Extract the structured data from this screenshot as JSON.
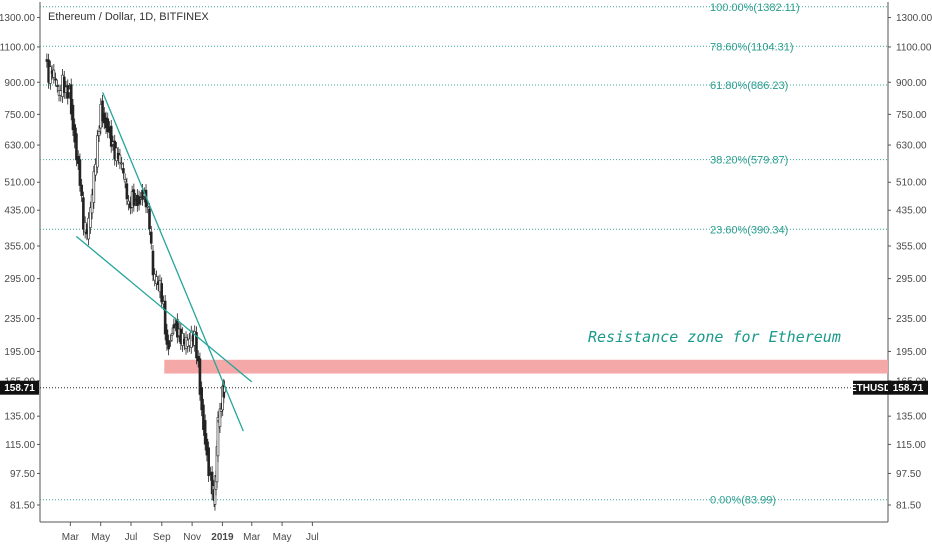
{
  "chart_data": {
    "type": "candlestick",
    "title": "Ethereum / Dollar, 1D, BITFINEX",
    "y_scale": "log",
    "ylim": [
      74,
      1420
    ],
    "y_ticks": [
      "1300.00",
      "1100.00",
      "900.00",
      "750.00",
      "630.00",
      "510.00",
      "435.00",
      "355.00",
      "295.00",
      "235.00",
      "195.00",
      "165.00",
      "135.00",
      "115.00",
      "97.50",
      "81.50"
    ],
    "x_ticks": [
      "Mar",
      "May",
      "Jul",
      "Sep",
      "Nov",
      "2019",
      "Mar",
      "May",
      "Jul"
    ],
    "fibonacci": [
      {
        "label": "100.00%(1382.11)",
        "price": 1382.11
      },
      {
        "label": "78.60%(1104.31)",
        "price": 1104.31
      },
      {
        "label": "61.80%(886.23)",
        "price": 886.23
      },
      {
        "label": "38.20%(579.87)",
        "price": 579.87
      },
      {
        "label": "23.60%(390.34)",
        "price": 390.34
      },
      {
        "label": "0.00%(83.99)",
        "price": 83.99
      }
    ],
    "current_price": {
      "symbol": "ETHUSD",
      "value": "158.71",
      "price": 158.71
    },
    "annotation": "Resistance zone for Ethereum",
    "resistance_zone": {
      "low": 172,
      "high": 186
    },
    "trendlines": [
      {
        "name": "descending resistance",
        "from": {
          "date": "2018-05-05",
          "price": 850
        },
        "to": {
          "date": "2019-02-12",
          "price": 124
        }
      },
      {
        "name": "lower trendline",
        "from": {
          "date": "2018-03-13",
          "price": 375
        },
        "to": {
          "date": "2019-03-01",
          "price": 164
        }
      }
    ],
    "price_path": [
      [
        "2018-01-11",
        1050
      ],
      [
        "2018-01-18",
        930
      ],
      [
        "2018-01-25",
        960
      ],
      [
        "2018-02-01",
        900
      ],
      [
        "2018-02-08",
        830
      ],
      [
        "2018-02-15",
        900
      ],
      [
        "2018-02-22",
        850
      ],
      [
        "2018-03-01",
        860
      ],
      [
        "2018-03-08",
        700
      ],
      [
        "2018-03-15",
        600
      ],
      [
        "2018-03-22",
        520
      ],
      [
        "2018-03-29",
        400
      ],
      [
        "2018-04-05",
        380
      ],
      [
        "2018-04-12",
        430
      ],
      [
        "2018-04-19",
        520
      ],
      [
        "2018-04-26",
        640
      ],
      [
        "2018-05-03",
        780
      ],
      [
        "2018-05-10",
        720
      ],
      [
        "2018-05-17",
        700
      ],
      [
        "2018-05-24",
        650
      ],
      [
        "2018-05-31",
        600
      ],
      [
        "2018-06-07",
        590
      ],
      [
        "2018-06-14",
        560
      ],
      [
        "2018-06-21",
        500
      ],
      [
        "2018-06-28",
        440
      ],
      [
        "2018-07-05",
        470
      ],
      [
        "2018-07-12",
        460
      ],
      [
        "2018-07-19",
        460
      ],
      [
        "2018-07-26",
        480
      ],
      [
        "2018-08-02",
        460
      ],
      [
        "2018-08-09",
        400
      ],
      [
        "2018-08-16",
        300
      ],
      [
        "2018-08-23",
        290
      ],
      [
        "2018-08-30",
        280
      ],
      [
        "2018-09-06",
        250
      ],
      [
        "2018-09-13",
        200
      ],
      [
        "2018-09-20",
        210
      ],
      [
        "2018-09-27",
        230
      ],
      [
        "2018-10-04",
        220
      ],
      [
        "2018-10-11",
        210
      ],
      [
        "2018-10-18",
        205
      ],
      [
        "2018-10-25",
        204
      ],
      [
        "2018-11-01",
        210
      ],
      [
        "2018-11-08",
        210
      ],
      [
        "2018-11-15",
        180
      ],
      [
        "2018-11-22",
        140
      ],
      [
        "2018-11-29",
        118
      ],
      [
        "2018-12-06",
        100
      ],
      [
        "2018-12-13",
        90
      ],
      [
        "2018-12-16",
        85
      ],
      [
        "2018-12-20",
        95
      ],
      [
        "2018-12-24",
        130
      ],
      [
        "2018-12-28",
        135
      ],
      [
        "2019-01-03",
        155
      ],
      [
        "2019-01-06",
        158
      ]
    ]
  }
}
